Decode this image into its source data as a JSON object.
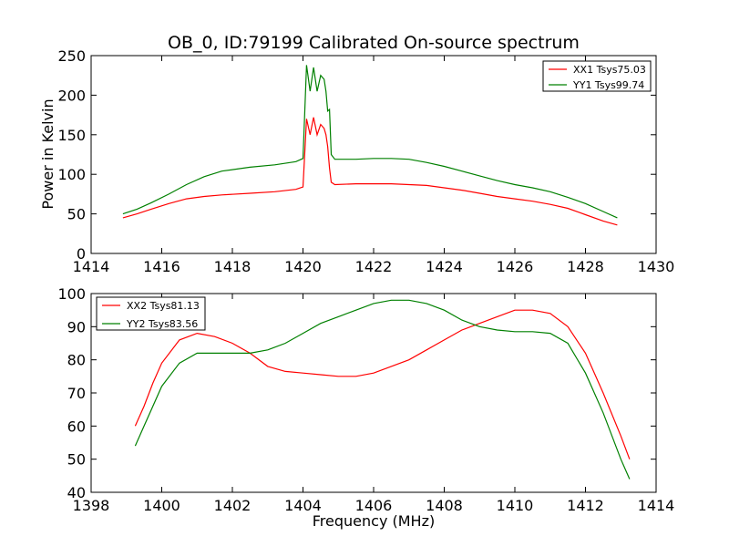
{
  "chart_data": [
    {
      "type": "line",
      "title": "OB_0, ID:79199 Calibrated On-source spectrum",
      "xlabel": "",
      "ylabel": "Power in Kelvin",
      "xlim": [
        1414,
        1430
      ],
      "ylim": [
        0,
        250
      ],
      "xticks": [
        1414,
        1416,
        1418,
        1420,
        1422,
        1424,
        1426,
        1428,
        1430
      ],
      "yticks": [
        0,
        50,
        100,
        150,
        200,
        250
      ],
      "grid": false,
      "legend_position": "top-right",
      "series": [
        {
          "name": "XX1 Tsys75.03",
          "color": "#ff0000",
          "points": [
            [
              1414.9,
              45
            ],
            [
              1415.3,
              50
            ],
            [
              1415.7,
              56
            ],
            [
              1416.2,
              63
            ],
            [
              1416.7,
              69
            ],
            [
              1417.2,
              72
            ],
            [
              1417.7,
              74
            ],
            [
              1418.5,
              76
            ],
            [
              1419.2,
              78
            ],
            [
              1419.8,
              81
            ],
            [
              1420.0,
              84
            ],
            [
              1420.1,
              170
            ],
            [
              1420.2,
              150
            ],
            [
              1420.3,
              172
            ],
            [
              1420.4,
              150
            ],
            [
              1420.5,
              163
            ],
            [
              1420.6,
              158
            ],
            [
              1420.65,
              150
            ],
            [
              1420.7,
              135
            ],
            [
              1420.75,
              108
            ],
            [
              1420.8,
              90
            ],
            [
              1420.9,
              87
            ],
            [
              1421.5,
              88
            ],
            [
              1422.0,
              88
            ],
            [
              1422.5,
              88
            ],
            [
              1423.0,
              87
            ],
            [
              1423.5,
              86
            ],
            [
              1424.0,
              83
            ],
            [
              1424.5,
              80
            ],
            [
              1425.0,
              76
            ],
            [
              1425.5,
              72
            ],
            [
              1426.0,
              69
            ],
            [
              1426.5,
              66
            ],
            [
              1427.0,
              62
            ],
            [
              1427.5,
              57
            ],
            [
              1428.0,
              49
            ],
            [
              1428.5,
              41
            ],
            [
              1428.9,
              36
            ]
          ]
        },
        {
          "name": "YY1 Tsys99.74",
          "color": "#008000",
          "points": [
            [
              1414.9,
              50
            ],
            [
              1415.3,
              56
            ],
            [
              1415.7,
              64
            ],
            [
              1416.2,
              75
            ],
            [
              1416.7,
              87
            ],
            [
              1417.2,
              97
            ],
            [
              1417.7,
              104
            ],
            [
              1418.5,
              109
            ],
            [
              1419.2,
              112
            ],
            [
              1419.8,
              116
            ],
            [
              1420.0,
              120
            ],
            [
              1420.1,
              238
            ],
            [
              1420.2,
              205
            ],
            [
              1420.3,
              235
            ],
            [
              1420.4,
              205
            ],
            [
              1420.5,
              225
            ],
            [
              1420.6,
              220
            ],
            [
              1420.65,
              205
            ],
            [
              1420.7,
              180
            ],
            [
              1420.75,
              182
            ],
            [
              1420.8,
              125
            ],
            [
              1420.9,
              119
            ],
            [
              1421.5,
              119
            ],
            [
              1422.0,
              120
            ],
            [
              1422.5,
              120
            ],
            [
              1423.0,
              119
            ],
            [
              1423.5,
              115
            ],
            [
              1424.0,
              110
            ],
            [
              1424.5,
              104
            ],
            [
              1425.0,
              98
            ],
            [
              1425.5,
              92
            ],
            [
              1426.0,
              87
            ],
            [
              1426.5,
              83
            ],
            [
              1427.0,
              78
            ],
            [
              1427.5,
              71
            ],
            [
              1428.0,
              63
            ],
            [
              1428.5,
              53
            ],
            [
              1428.9,
              45
            ]
          ]
        }
      ]
    },
    {
      "type": "line",
      "title": "",
      "xlabel": "Frequency (MHz)",
      "ylabel": "",
      "xlim": [
        1398,
        1414
      ],
      "ylim": [
        40,
        100
      ],
      "xticks": [
        1398,
        1400,
        1402,
        1404,
        1406,
        1408,
        1410,
        1412,
        1414
      ],
      "yticks": [
        40,
        50,
        60,
        70,
        80,
        90,
        100
      ],
      "grid": false,
      "legend_position": "top-left",
      "series": [
        {
          "name": "XX2 Tsys81.13",
          "color": "#ff0000",
          "points": [
            [
              1399.25,
              60
            ],
            [
              1399.5,
              66
            ],
            [
              1399.75,
              73
            ],
            [
              1400.0,
              79
            ],
            [
              1400.5,
              86
            ],
            [
              1401.0,
              88
            ],
            [
              1401.5,
              87
            ],
            [
              1402.0,
              85
            ],
            [
              1402.5,
              82
            ],
            [
              1403.0,
              78
            ],
            [
              1403.5,
              76.5
            ],
            [
              1404.0,
              76
            ],
            [
              1404.5,
              75.5
            ],
            [
              1405.0,
              75
            ],
            [
              1405.5,
              75
            ],
            [
              1406.0,
              76
            ],
            [
              1406.5,
              78
            ],
            [
              1407.0,
              80
            ],
            [
              1407.5,
              83
            ],
            [
              1408.0,
              86
            ],
            [
              1408.5,
              89
            ],
            [
              1409.0,
              91
            ],
            [
              1409.5,
              93
            ],
            [
              1410.0,
              95
            ],
            [
              1410.5,
              95
            ],
            [
              1411.0,
              94
            ],
            [
              1411.5,
              90
            ],
            [
              1412.0,
              82
            ],
            [
              1412.5,
              70
            ],
            [
              1413.0,
              57
            ],
            [
              1413.25,
              50
            ]
          ]
        },
        {
          "name": "YY2 Tsys83.56",
          "color": "#008000",
          "points": [
            [
              1399.25,
              54
            ],
            [
              1399.5,
              60
            ],
            [
              1399.75,
              66
            ],
            [
              1400.0,
              72
            ],
            [
              1400.5,
              79
            ],
            [
              1401.0,
              82
            ],
            [
              1401.5,
              82
            ],
            [
              1402.0,
              82
            ],
            [
              1402.5,
              82
            ],
            [
              1403.0,
              83
            ],
            [
              1403.5,
              85
            ],
            [
              1404.0,
              88
            ],
            [
              1404.5,
              91
            ],
            [
              1405.0,
              93
            ],
            [
              1405.5,
              95
            ],
            [
              1406.0,
              97
            ],
            [
              1406.5,
              98
            ],
            [
              1407.0,
              98
            ],
            [
              1407.5,
              97
            ],
            [
              1408.0,
              95
            ],
            [
              1408.5,
              92
            ],
            [
              1409.0,
              90
            ],
            [
              1409.5,
              89
            ],
            [
              1410.0,
              88.5
            ],
            [
              1410.5,
              88.5
            ],
            [
              1411.0,
              88
            ],
            [
              1411.5,
              85
            ],
            [
              1412.0,
              76
            ],
            [
              1412.5,
              64
            ],
            [
              1413.0,
              50
            ],
            [
              1413.25,
              44
            ]
          ]
        }
      ]
    }
  ]
}
